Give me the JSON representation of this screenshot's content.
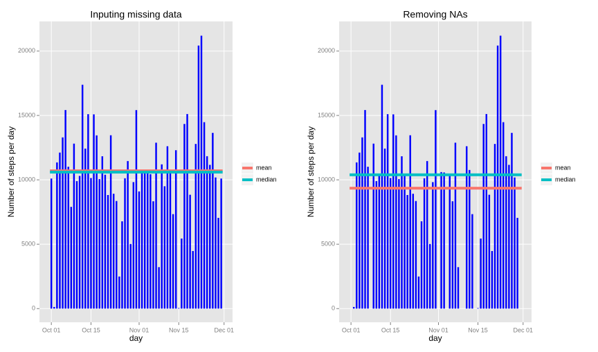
{
  "chart_data": [
    {
      "type": "bar",
      "title": "Inputing missing data",
      "xlabel": "day",
      "ylabel": "Number of steps per day",
      "color": "#0000FF",
      "x": [
        0,
        1,
        2,
        3,
        4,
        5,
        6,
        7,
        8,
        9,
        10,
        11,
        12,
        13,
        14,
        15,
        16,
        17,
        18,
        19,
        20,
        21,
        22,
        23,
        24,
        25,
        26,
        27,
        28,
        29,
        30,
        31,
        32,
        33,
        34,
        35,
        36,
        37,
        38,
        39,
        40,
        41,
        42,
        43,
        44,
        45,
        46,
        47,
        48,
        49,
        50,
        51,
        52,
        53,
        54,
        55,
        56,
        57,
        58,
        59,
        60
      ],
      "values": [
        10100,
        126,
        11352,
        12116,
        13294,
        15420,
        11015,
        7900,
        12811,
        9900,
        10304,
        17382,
        12426,
        15098,
        10139,
        15084,
        13452,
        10056,
        11829,
        10395,
        8821,
        13460,
        8918,
        8355,
        2492,
        6778,
        10119,
        11458,
        5018,
        9819,
        15414,
        9100,
        10600,
        10571,
        10600,
        10439,
        8334,
        12883,
        3219,
        11200,
        9500,
        12608,
        10765,
        7336,
        12300,
        41,
        5441,
        14339,
        15110,
        8841,
        4472,
        12787,
        20427,
        21194,
        14478,
        11834,
        11162,
        13646,
        10183,
        7047,
        10100
      ],
      "reference_lines": [
        {
          "name": "mean",
          "color": "#F8766D",
          "value": 10700
        },
        {
          "name": "median",
          "color": "#00BFC4",
          "value": 10600
        }
      ],
      "xlim": [
        -4.2,
        64
      ],
      "xticks": [
        {
          "value": 0,
          "label": "Oct 01"
        },
        {
          "value": 14,
          "label": "Oct 15"
        },
        {
          "value": 31,
          "label": "Nov 01"
        },
        {
          "value": 45,
          "label": "Nov 15"
        },
        {
          "value": 61,
          "label": "Dec 01"
        }
      ],
      "ylim": [
        -1060,
        22300
      ],
      "yticks": [
        0,
        5000,
        10000,
        15000,
        20000
      ],
      "grid": true
    },
    {
      "type": "bar",
      "title": "Removing NAs",
      "xlabel": "day",
      "ylabel": "Number of steps per day",
      "color": "#0000FF",
      "x": [
        0,
        1,
        2,
        3,
        4,
        5,
        6,
        7,
        8,
        9,
        10,
        11,
        12,
        13,
        14,
        15,
        16,
        17,
        18,
        19,
        20,
        21,
        22,
        23,
        24,
        25,
        26,
        27,
        28,
        29,
        30,
        31,
        32,
        33,
        34,
        35,
        36,
        37,
        38,
        39,
        40,
        41,
        42,
        43,
        44,
        45,
        46,
        47,
        48,
        49,
        50,
        51,
        52,
        53,
        54,
        55,
        56,
        57,
        58,
        59,
        60
      ],
      "values": [
        0,
        126,
        11352,
        12116,
        13294,
        15420,
        11015,
        0,
        12811,
        9900,
        10304,
        17382,
        12426,
        15098,
        10139,
        15084,
        13452,
        10056,
        11829,
        10395,
        8821,
        13460,
        8918,
        8355,
        2492,
        6778,
        10119,
        11458,
        5018,
        9819,
        15414,
        0,
        10600,
        10571,
        0,
        10439,
        8334,
        12883,
        3219,
        0,
        0,
        12608,
        10765,
        7336,
        0,
        41,
        5441,
        14339,
        15110,
        8841,
        4472,
        12787,
        20427,
        21194,
        14478,
        11834,
        11162,
        13646,
        10183,
        7047,
        0
      ],
      "reference_lines": [
        {
          "name": "mean",
          "color": "#F8766D",
          "value": 9354
        },
        {
          "name": "median",
          "color": "#00BFC4",
          "value": 10395
        }
      ],
      "xlim": [
        -4.2,
        64
      ],
      "xticks": [
        {
          "value": 0,
          "label": "Oct 01"
        },
        {
          "value": 14,
          "label": "Oct 15"
        },
        {
          "value": 31,
          "label": "Nov 01"
        },
        {
          "value": 45,
          "label": "Nov 15"
        },
        {
          "value": 61,
          "label": "Dec 01"
        }
      ],
      "ylim": [
        -1060,
        22300
      ],
      "yticks": [
        0,
        5000,
        10000,
        15000,
        20000
      ],
      "grid": true
    }
  ]
}
